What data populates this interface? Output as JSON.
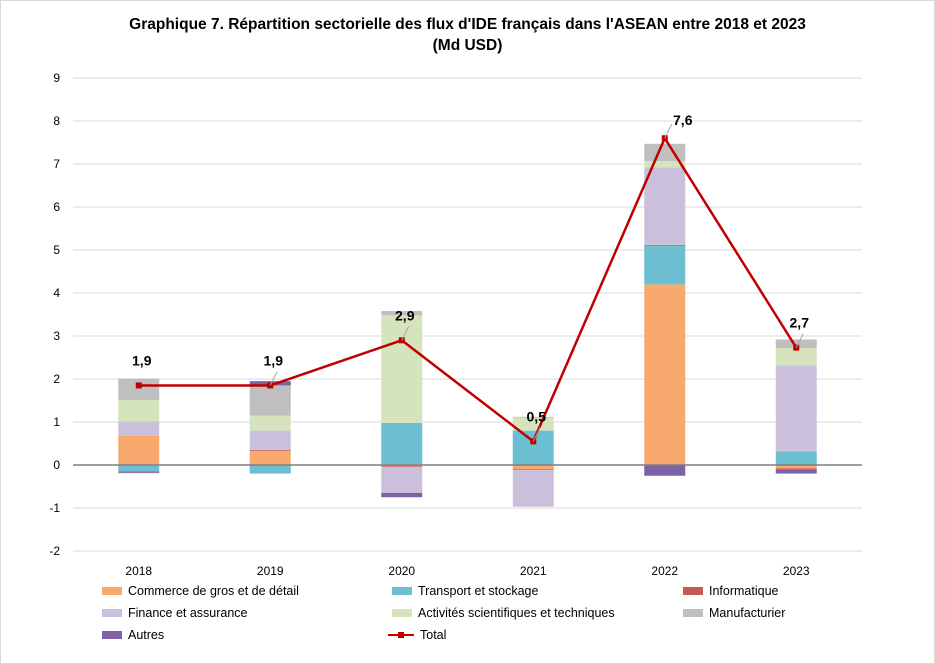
{
  "chart_data": {
    "type": "bar",
    "stacked": true,
    "title": "Graphique 7. Répartition sectorielle des flux d'IDE français dans l'ASEAN entre 2018 et 2023",
    "subtitle": "(Md USD)",
    "categories": [
      "2018",
      "2019",
      "2020",
      "2021",
      "2022",
      "2023"
    ],
    "ylim": [
      -2,
      9
    ],
    "yticks": [
      "-2",
      "-1",
      "0",
      "1",
      "2",
      "3",
      "4",
      "5",
      "6",
      "7",
      "8",
      "9"
    ],
    "grid": true,
    "series": [
      {
        "name": "Commerce de gros et de détail",
        "color": "#f8aa6e",
        "values": [
          0.68,
          0.33,
          -0.03,
          -0.1,
          4.2,
          -0.08
        ]
      },
      {
        "name": "Transport et stockage",
        "color": "#6cbfd1",
        "values": [
          -0.15,
          -0.2,
          0.98,
          0.8,
          0.9,
          0.32
        ]
      },
      {
        "name": "Informatique",
        "color": "#c55a53",
        "values": [
          -0.02,
          0.02,
          -0.02,
          -0.02,
          0.02,
          -0.02
        ]
      },
      {
        "name": "Finance et assurance",
        "color": "#cbc0dc",
        "values": [
          0.33,
          0.45,
          -0.6,
          -0.85,
          1.8,
          2.0
        ]
      },
      {
        "name": "Activités scientifiques et techniques",
        "color": "#d6e4bd",
        "values": [
          0.5,
          0.35,
          2.5,
          0.3,
          0.15,
          0.4
        ]
      },
      {
        "name": "Manufacturier",
        "color": "#bfbfbf",
        "values": [
          0.5,
          0.7,
          0.1,
          0.02,
          0.4,
          0.2
        ]
      },
      {
        "name": "Autres",
        "color": "#7f62a6",
        "values": [
          -0.02,
          0.1,
          -0.1,
          0,
          -0.25,
          -0.1
        ]
      }
    ],
    "line": {
      "name": "Total",
      "color": "#c00000",
      "values": [
        1.85,
        1.85,
        2.9,
        0.55,
        7.6,
        2.73
      ]
    },
    "data_labels": [
      "1,9",
      "1,9",
      "2,9",
      "0,5",
      "7,6",
      "2,7"
    ],
    "legend_position": "bottom"
  }
}
